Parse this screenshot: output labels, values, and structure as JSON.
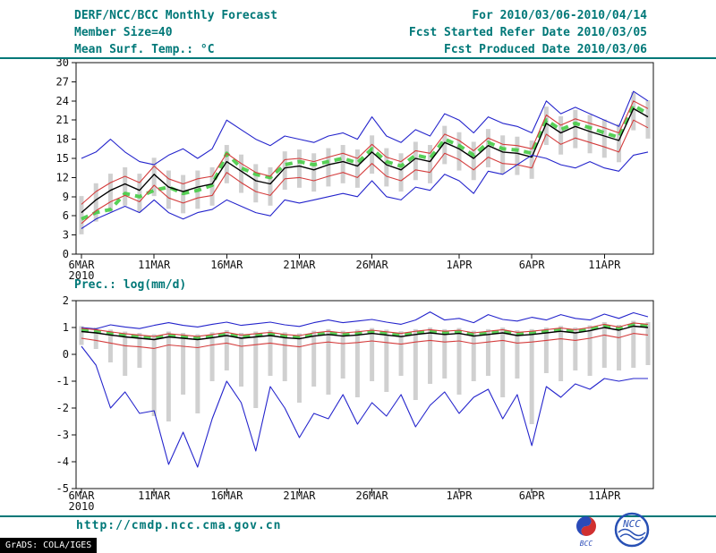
{
  "header": {
    "title": "DERF/NCC/BCC Monthly Forecast",
    "member_size": "Member Size=40",
    "period": "For 2010/03/06-2010/04/14",
    "refer_date": "Fcst Started Refer Date 2010/03/05",
    "produced_date": "Fcst Produced Date 2010/03/06"
  },
  "colors": {
    "teal": "#007878",
    "blue": "#2424cc",
    "red": "#d43c3c",
    "green": "#46cc46",
    "black": "#000000",
    "gray": "#c8c8c8"
  },
  "chart_data": [
    {
      "type": "line",
      "title": "Mean Surf. Temp.: °C",
      "ylim": [
        0,
        30
      ],
      "yticks": [
        0,
        3,
        6,
        9,
        12,
        15,
        18,
        21,
        24,
        27,
        30
      ],
      "x_ticks": [
        {
          "i": 0,
          "label": "6MAR",
          "sub": "2010"
        },
        {
          "i": 5,
          "label": "11MAR"
        },
        {
          "i": 10,
          "label": "16MAR"
        },
        {
          "i": 15,
          "label": "21MAR"
        },
        {
          "i": 20,
          "label": "26MAR"
        },
        {
          "i": 26,
          "label": "1APR"
        },
        {
          "i": 31,
          "label": "6APR"
        },
        {
          "i": 36,
          "label": "11APR"
        }
      ],
      "bars": {
        "name": "ensemble-spread",
        "color": "gray",
        "high": [
          9.1,
          11.1,
          12.6,
          13.6,
          12.6,
          15.1,
          13.1,
          12.4,
          13.1,
          13.6,
          17.1,
          15.6,
          14.1,
          13.6,
          16.1,
          16.4,
          15.8,
          16.6,
          17.1,
          16.4,
          18.6,
          16.6,
          15.8,
          17.6,
          17.1,
          20.1,
          19.1,
          17.6,
          19.6,
          18.6,
          18.4,
          17.8,
          23.1,
          21.6,
          22.6,
          21.8,
          21.1,
          20.4,
          25.4,
          24.1
        ],
        "low": [
          3.1,
          5.1,
          6.6,
          7.6,
          6.6,
          9.1,
          7.1,
          6.4,
          7.1,
          7.6,
          11.1,
          9.6,
          8.1,
          7.6,
          10.1,
          10.4,
          9.8,
          10.6,
          11.1,
          10.4,
          12.6,
          10.6,
          9.8,
          11.6,
          11.1,
          14.1,
          13.1,
          11.6,
          13.6,
          12.6,
          12.4,
          11.8,
          17.1,
          15.6,
          16.6,
          15.8,
          15.1,
          14.4,
          19.4,
          18.1
        ]
      },
      "series": [
        {
          "name": "highlight-dashed",
          "color": "green",
          "dashed": true,
          "values": [
            5.5,
            6.5,
            7.0,
            9.5,
            9.0,
            10.0,
            10.5,
            9.5,
            10.0,
            10.8,
            15.8,
            13.5,
            12.5,
            12.0,
            14.0,
            14.5,
            14.0,
            14.5,
            15.0,
            14.3,
            16.5,
            14.5,
            13.8,
            15.5,
            15.0,
            18.0,
            17.0,
            15.5,
            17.5,
            16.5,
            16.3,
            15.8,
            21.0,
            19.5,
            20.5,
            19.8,
            19.0,
            18.3,
            23.3,
            22.0
          ]
        },
        {
          "name": "upper-envelope",
          "color": "blue",
          "values": [
            15.0,
            16.0,
            18.0,
            16.0,
            14.5,
            14.0,
            15.5,
            16.5,
            15.0,
            16.5,
            21.0,
            19.5,
            18.0,
            17.0,
            18.5,
            18.0,
            17.5,
            18.5,
            19.0,
            18.0,
            21.5,
            18.5,
            17.5,
            19.5,
            18.5,
            22.0,
            21.0,
            19.0,
            21.5,
            20.5,
            20.0,
            19.0,
            24.0,
            22.0,
            23.0,
            22.0,
            21.0,
            20.0,
            25.5,
            24.0
          ]
        },
        {
          "name": "upper-quartile",
          "color": "red",
          "values": [
            7.8,
            9.8,
            11.2,
            12.2,
            11.2,
            13.8,
            11.8,
            11.0,
            11.8,
            12.2,
            15.8,
            14.2,
            12.8,
            12.2,
            14.8,
            15.0,
            14.5,
            15.2,
            15.8,
            15.0,
            17.2,
            15.2,
            14.5,
            16.2,
            15.8,
            18.8,
            17.8,
            16.2,
            18.2,
            17.2,
            17.0,
            16.5,
            21.8,
            20.2,
            21.2,
            20.5,
            19.8,
            19.0,
            24.0,
            22.8
          ]
        },
        {
          "name": "ensemble-mean",
          "color": "black",
          "values": [
            6.5,
            8.5,
            10.0,
            11.0,
            10.0,
            12.5,
            10.5,
            9.8,
            10.5,
            11.0,
            14.5,
            13.0,
            11.5,
            11.0,
            13.5,
            13.8,
            13.2,
            14.0,
            14.5,
            13.8,
            16.0,
            14.0,
            13.2,
            15.0,
            14.5,
            17.5,
            16.5,
            15.0,
            17.0,
            16.0,
            15.8,
            15.2,
            20.5,
            19.0,
            20.0,
            19.2,
            18.5,
            17.8,
            22.8,
            21.5
          ]
        },
        {
          "name": "lower-quartile",
          "color": "red",
          "values": [
            4.8,
            6.8,
            8.2,
            9.2,
            8.2,
            10.8,
            8.8,
            8.0,
            8.8,
            9.2,
            12.8,
            11.2,
            9.8,
            9.2,
            11.8,
            12.0,
            11.5,
            12.2,
            12.8,
            12.0,
            14.2,
            12.2,
            11.5,
            13.2,
            12.8,
            15.8,
            14.8,
            13.2,
            15.2,
            14.2,
            14.0,
            13.5,
            18.8,
            17.2,
            18.2,
            17.5,
            16.8,
            16.0,
            21.0,
            19.8
          ]
        },
        {
          "name": "lower-envelope",
          "color": "blue",
          "values": [
            4.0,
            5.5,
            6.5,
            7.5,
            6.5,
            8.5,
            6.5,
            5.5,
            6.5,
            7.0,
            8.5,
            7.5,
            6.5,
            6.0,
            8.5,
            8.0,
            8.5,
            9.0,
            9.5,
            9.0,
            11.5,
            9.0,
            8.5,
            10.5,
            10.0,
            12.5,
            11.5,
            9.5,
            13.0,
            12.5,
            14.0,
            15.5,
            15.0,
            14.0,
            13.5,
            14.5,
            13.5,
            13.0,
            15.5,
            16.0
          ]
        }
      ]
    },
    {
      "type": "line",
      "title": "Prec.: log(mm/d)",
      "ylim": [
        -5,
        2
      ],
      "yticks": [
        -5,
        -4,
        -3,
        -2,
        -1,
        0,
        1,
        2
      ],
      "x_ticks": [
        {
          "i": 0,
          "label": "6MAR",
          "sub": "2010"
        },
        {
          "i": 5,
          "label": "11MAR"
        },
        {
          "i": 10,
          "label": "16MAR"
        },
        {
          "i": 15,
          "label": "21MAR"
        },
        {
          "i": 20,
          "label": "26MAR"
        },
        {
          "i": 26,
          "label": "1APR"
        },
        {
          "i": 31,
          "label": "6APR"
        },
        {
          "i": 36,
          "label": "11APR"
        }
      ],
      "bars": {
        "name": "ensemble-spread",
        "color": "gray",
        "high": [
          1.05,
          1.0,
          0.92,
          0.85,
          0.8,
          0.75,
          0.85,
          0.8,
          0.75,
          0.82,
          0.9,
          0.8,
          0.85,
          0.9,
          0.82,
          0.78,
          0.88,
          0.94,
          0.88,
          0.92,
          0.98,
          0.92,
          0.86,
          0.94,
          1.0,
          0.94,
          0.98,
          0.88,
          0.94,
          1.0,
          0.9,
          0.94,
          1.0,
          1.06,
          1.0,
          1.08,
          1.2,
          1.1,
          1.25,
          1.2
        ],
        "low": [
          0.35,
          0.2,
          -0.3,
          -0.8,
          -0.5,
          -2.3,
          -2.5,
          -1.5,
          -2.2,
          -1.0,
          -0.6,
          -1.2,
          -2.0,
          -0.8,
          -1.0,
          -1.8,
          -1.2,
          -1.5,
          -0.9,
          -1.6,
          -1.0,
          -1.4,
          -0.8,
          -1.7,
          -1.1,
          -0.9,
          -1.5,
          -1.0,
          -0.8,
          -1.6,
          -0.9,
          -2.6,
          -0.7,
          -1.0,
          -0.6,
          -0.8,
          -0.5,
          -0.6,
          -0.5,
          -0.4
        ]
      },
      "series": [
        {
          "name": "highlight-dashed",
          "color": "green",
          "dashed": true,
          "values": [
            0.9,
            0.85,
            0.78,
            0.7,
            0.65,
            0.6,
            0.7,
            0.66,
            0.6,
            0.68,
            0.76,
            0.66,
            0.7,
            0.76,
            0.68,
            0.64,
            0.74,
            0.8,
            0.74,
            0.78,
            0.84,
            0.78,
            0.72,
            0.8,
            0.86,
            0.8,
            0.84,
            0.74,
            0.8,
            0.86,
            0.76,
            0.8,
            0.86,
            0.92,
            0.86,
            0.94,
            1.06,
            0.96,
            1.1,
            1.06
          ]
        },
        {
          "name": "upper-envelope",
          "color": "blue",
          "values": [
            1.0,
            0.95,
            1.1,
            1.02,
            0.96,
            1.08,
            1.18,
            1.08,
            1.02,
            1.12,
            1.2,
            1.08,
            1.14,
            1.2,
            1.1,
            1.04,
            1.18,
            1.28,
            1.18,
            1.24,
            1.3,
            1.2,
            1.12,
            1.28,
            1.58,
            1.28,
            1.34,
            1.18,
            1.48,
            1.3,
            1.24,
            1.38,
            1.28,
            1.48,
            1.34,
            1.28,
            1.5,
            1.34,
            1.55,
            1.4
          ]
        },
        {
          "name": "upper-quartile",
          "color": "red",
          "values": [
            0.97,
            0.92,
            0.84,
            0.77,
            0.72,
            0.67,
            0.77,
            0.72,
            0.67,
            0.74,
            0.82,
            0.72,
            0.77,
            0.82,
            0.74,
            0.7,
            0.8,
            0.86,
            0.8,
            0.84,
            0.9,
            0.84,
            0.78,
            0.86,
            0.92,
            0.86,
            0.9,
            0.8,
            0.86,
            0.92,
            0.82,
            0.86,
            0.92,
            0.98,
            0.92,
            1.0,
            1.12,
            1.02,
            1.17,
            1.12
          ]
        },
        {
          "name": "ensemble-mean",
          "color": "black",
          "values": [
            0.85,
            0.8,
            0.72,
            0.65,
            0.6,
            0.55,
            0.65,
            0.6,
            0.55,
            0.62,
            0.7,
            0.6,
            0.65,
            0.7,
            0.62,
            0.58,
            0.68,
            0.74,
            0.68,
            0.72,
            0.78,
            0.72,
            0.66,
            0.74,
            0.8,
            0.74,
            0.78,
            0.68,
            0.74,
            0.8,
            0.7,
            0.74,
            0.8,
            0.86,
            0.8,
            0.88,
            1.0,
            0.9,
            1.05,
            1.0
          ]
        },
        {
          "name": "lower-quartile",
          "color": "red",
          "values": [
            0.6,
            0.52,
            0.42,
            0.32,
            0.28,
            0.22,
            0.35,
            0.3,
            0.25,
            0.35,
            0.42,
            0.3,
            0.36,
            0.42,
            0.34,
            0.28,
            0.4,
            0.46,
            0.4,
            0.44,
            0.5,
            0.44,
            0.38,
            0.46,
            0.52,
            0.46,
            0.5,
            0.4,
            0.46,
            0.52,
            0.42,
            0.46,
            0.52,
            0.58,
            0.52,
            0.6,
            0.72,
            0.62,
            0.78,
            0.72
          ]
        },
        {
          "name": "lower-envelope",
          "color": "blue",
          "values": [
            0.3,
            -0.4,
            -2.0,
            -1.4,
            -2.2,
            -2.1,
            -4.1,
            -2.9,
            -4.2,
            -2.4,
            -1.0,
            -1.8,
            -3.6,
            -1.2,
            -2.0,
            -3.1,
            -2.2,
            -2.4,
            -1.5,
            -2.6,
            -1.8,
            -2.3,
            -1.5,
            -2.7,
            -1.9,
            -1.4,
            -2.2,
            -1.6,
            -1.3,
            -2.4,
            -1.5,
            -3.4,
            -1.2,
            -1.6,
            -1.1,
            -1.3,
            -0.9,
            -1.0,
            -0.9,
            -0.9
          ]
        }
      ]
    }
  ],
  "footer": {
    "url": "http://cmdp.ncc.cma.gov.cn",
    "grads_credit": "GrADS: COLA/IGES",
    "bcc_label": "BCC",
    "ncc_label": "NCC"
  }
}
